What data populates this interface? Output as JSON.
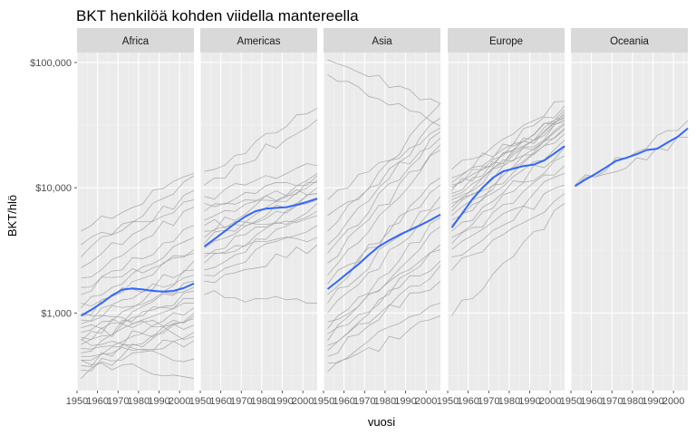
{
  "chart_data": {
    "type": "line",
    "title": "BKT henkilöä kohden viidella mantereella",
    "xlabel": "vuosi",
    "ylabel": "BKT/hlö",
    "y_scale": "log10",
    "xlim": [
      1950,
      2007
    ],
    "ylim": [
      240,
      120000
    ],
    "x_ticks": [
      1950,
      1960,
      1970,
      1980,
      1990,
      2000
    ],
    "x_tick_labels": [
      "1950",
      "1960",
      "1970",
      "1980",
      "1990",
      "2000"
    ],
    "y_ticks": [
      1000,
      10000,
      100000
    ],
    "y_tick_labels": [
      "$1,000",
      "$10,000",
      "$100,000"
    ],
    "grid": true,
    "facets": [
      {
        "name": "Africa",
        "trend": {
          "x": [
            1952,
            1957,
            1962,
            1967,
            1972,
            1977,
            1982,
            1987,
            1992,
            1997,
            2002,
            2007
          ],
          "y": [
            950,
            1060,
            1200,
            1380,
            1530,
            1570,
            1540,
            1500,
            1480,
            1500,
            1580,
            1720
          ]
        },
        "countries": [
          {
            "start": 300,
            "end": 1000
          },
          {
            "start": 350,
            "end": 700
          },
          {
            "start": 380,
            "end": 900
          },
          {
            "start": 420,
            "end": 1100
          },
          {
            "start": 450,
            "end": 600
          },
          {
            "start": 480,
            "end": 1300
          },
          {
            "start": 520,
            "end": 800
          },
          {
            "start": 560,
            "end": 1500
          },
          {
            "start": 600,
            "end": 1800
          },
          {
            "start": 640,
            "end": 950
          },
          {
            "start": 700,
            "end": 2200
          },
          {
            "start": 760,
            "end": 1200
          },
          {
            "start": 820,
            "end": 2600
          },
          {
            "start": 880,
            "end": 1600
          },
          {
            "start": 950,
            "end": 3200
          },
          {
            "start": 1000,
            "end": 650
          },
          {
            "start": 1100,
            "end": 4000
          },
          {
            "start": 1200,
            "end": 2000
          },
          {
            "start": 1400,
            "end": 5000
          },
          {
            "start": 1600,
            "end": 3000
          },
          {
            "start": 1900,
            "end": 7000
          },
          {
            "start": 2300,
            "end": 9500
          },
          {
            "start": 2800,
            "end": 12500
          },
          {
            "start": 3500,
            "end": 8000
          },
          {
            "start": 4500,
            "end": 13000
          },
          {
            "start": 420,
            "end": 300
          },
          {
            "start": 620,
            "end": 430
          }
        ]
      },
      {
        "name": "Americas",
        "trend": {
          "x": [
            1952,
            1957,
            1962,
            1967,
            1972,
            1977,
            1982,
            1987,
            1992,
            1997,
            2002,
            2007
          ],
          "y": [
            3400,
            3900,
            4500,
            5200,
            5900,
            6500,
            6800,
            6900,
            7000,
            7300,
            7700,
            8200
          ]
        },
        "countries": [
          {
            "start": 1400,
            "end": 1200
          },
          {
            "start": 1800,
            "end": 3500
          },
          {
            "start": 2000,
            "end": 5000
          },
          {
            "start": 2200,
            "end": 6500
          },
          {
            "start": 2500,
            "end": 7500
          },
          {
            "start": 2800,
            "end": 9000
          },
          {
            "start": 3000,
            "end": 4000
          },
          {
            "start": 3300,
            "end": 10000
          },
          {
            "start": 3600,
            "end": 11500
          },
          {
            "start": 4000,
            "end": 8000
          },
          {
            "start": 4500,
            "end": 12500
          },
          {
            "start": 5000,
            "end": 6000
          },
          {
            "start": 5500,
            "end": 11000
          },
          {
            "start": 6500,
            "end": 13000
          },
          {
            "start": 7500,
            "end": 9000
          },
          {
            "start": 8500,
            "end": 15000
          },
          {
            "start": 10500,
            "end": 35000
          },
          {
            "start": 13500,
            "end": 43000
          }
        ]
      },
      {
        "name": "Asia",
        "trend": {
          "x": [
            1952,
            1957,
            1962,
            1967,
            1972,
            1977,
            1982,
            1987,
            1992,
            1997,
            2002,
            2007
          ],
          "y": [
            1550,
            1800,
            2100,
            2450,
            2900,
            3400,
            3800,
            4200,
            4600,
            5000,
            5500,
            6100
          ]
        },
        "countries": [
          {
            "start": 340,
            "end": 950
          },
          {
            "start": 400,
            "end": 1200
          },
          {
            "start": 450,
            "end": 2400
          },
          {
            "start": 500,
            "end": 3500
          },
          {
            "start": 550,
            "end": 1800
          },
          {
            "start": 600,
            "end": 4900
          },
          {
            "start": 680,
            "end": 2600
          },
          {
            "start": 750,
            "end": 5800
          },
          {
            "start": 850,
            "end": 3200
          },
          {
            "start": 1000,
            "end": 7000
          },
          {
            "start": 1200,
            "end": 8500
          },
          {
            "start": 1400,
            "end": 12000
          },
          {
            "start": 1700,
            "end": 10500
          },
          {
            "start": 2000,
            "end": 20000
          },
          {
            "start": 2500,
            "end": 22000
          },
          {
            "start": 3000,
            "end": 28000
          },
          {
            "start": 3500,
            "end": 36000
          },
          {
            "start": 4500,
            "end": 47000
          },
          {
            "start": 6000,
            "end": 25000
          },
          {
            "start": 8000,
            "end": 30000
          },
          {
            "start": 105000,
            "end": 47000
          },
          {
            "start": 80000,
            "end": 31000
          }
        ]
      },
      {
        "name": "Europe",
        "trend": {
          "x": [
            1952,
            1957,
            1962,
            1967,
            1972,
            1977,
            1982,
            1987,
            1992,
            1997,
            2002,
            2007
          ],
          "y": [
            4800,
            6200,
            8100,
            10000,
            12000,
            13500,
            14200,
            14900,
            15300,
            16500,
            18800,
            21500
          ]
        },
        "countries": [
          {
            "start": 950,
            "end": 7500
          },
          {
            "start": 2200,
            "end": 9000
          },
          {
            "start": 2800,
            "end": 10500
          },
          {
            "start": 3200,
            "end": 13000
          },
          {
            "start": 3600,
            "end": 15000
          },
          {
            "start": 4000,
            "end": 18000
          },
          {
            "start": 4500,
            "end": 21000
          },
          {
            "start": 5000,
            "end": 24000
          },
          {
            "start": 5500,
            "end": 27000
          },
          {
            "start": 6000,
            "end": 29000
          },
          {
            "start": 6500,
            "end": 30000
          },
          {
            "start": 7000,
            "end": 32000
          },
          {
            "start": 7500,
            "end": 33000
          },
          {
            "start": 8000,
            "end": 34000
          },
          {
            "start": 8500,
            "end": 35000
          },
          {
            "start": 9000,
            "end": 36000
          },
          {
            "start": 9500,
            "end": 37000
          },
          {
            "start": 10000,
            "end": 38000
          },
          {
            "start": 10500,
            "end": 40000
          },
          {
            "start": 11000,
            "end": 42000
          },
          {
            "start": 12000,
            "end": 45000
          },
          {
            "start": 14000,
            "end": 49000
          }
        ]
      },
      {
        "name": "Oceania",
        "trend": {
          "x": [
            1952,
            1957,
            1962,
            1967,
            1972,
            1977,
            1982,
            1987,
            1992,
            1997,
            2002,
            2007
          ],
          "y": [
            10300,
            11600,
            12900,
            14500,
            16400,
            17300,
            18500,
            20000,
            20500,
            22900,
            25500,
            29800
          ]
        },
        "countries": [
          {
            "start": 10100,
            "end": 25200
          },
          {
            "start": 10500,
            "end": 34400
          }
        ]
      }
    ]
  }
}
